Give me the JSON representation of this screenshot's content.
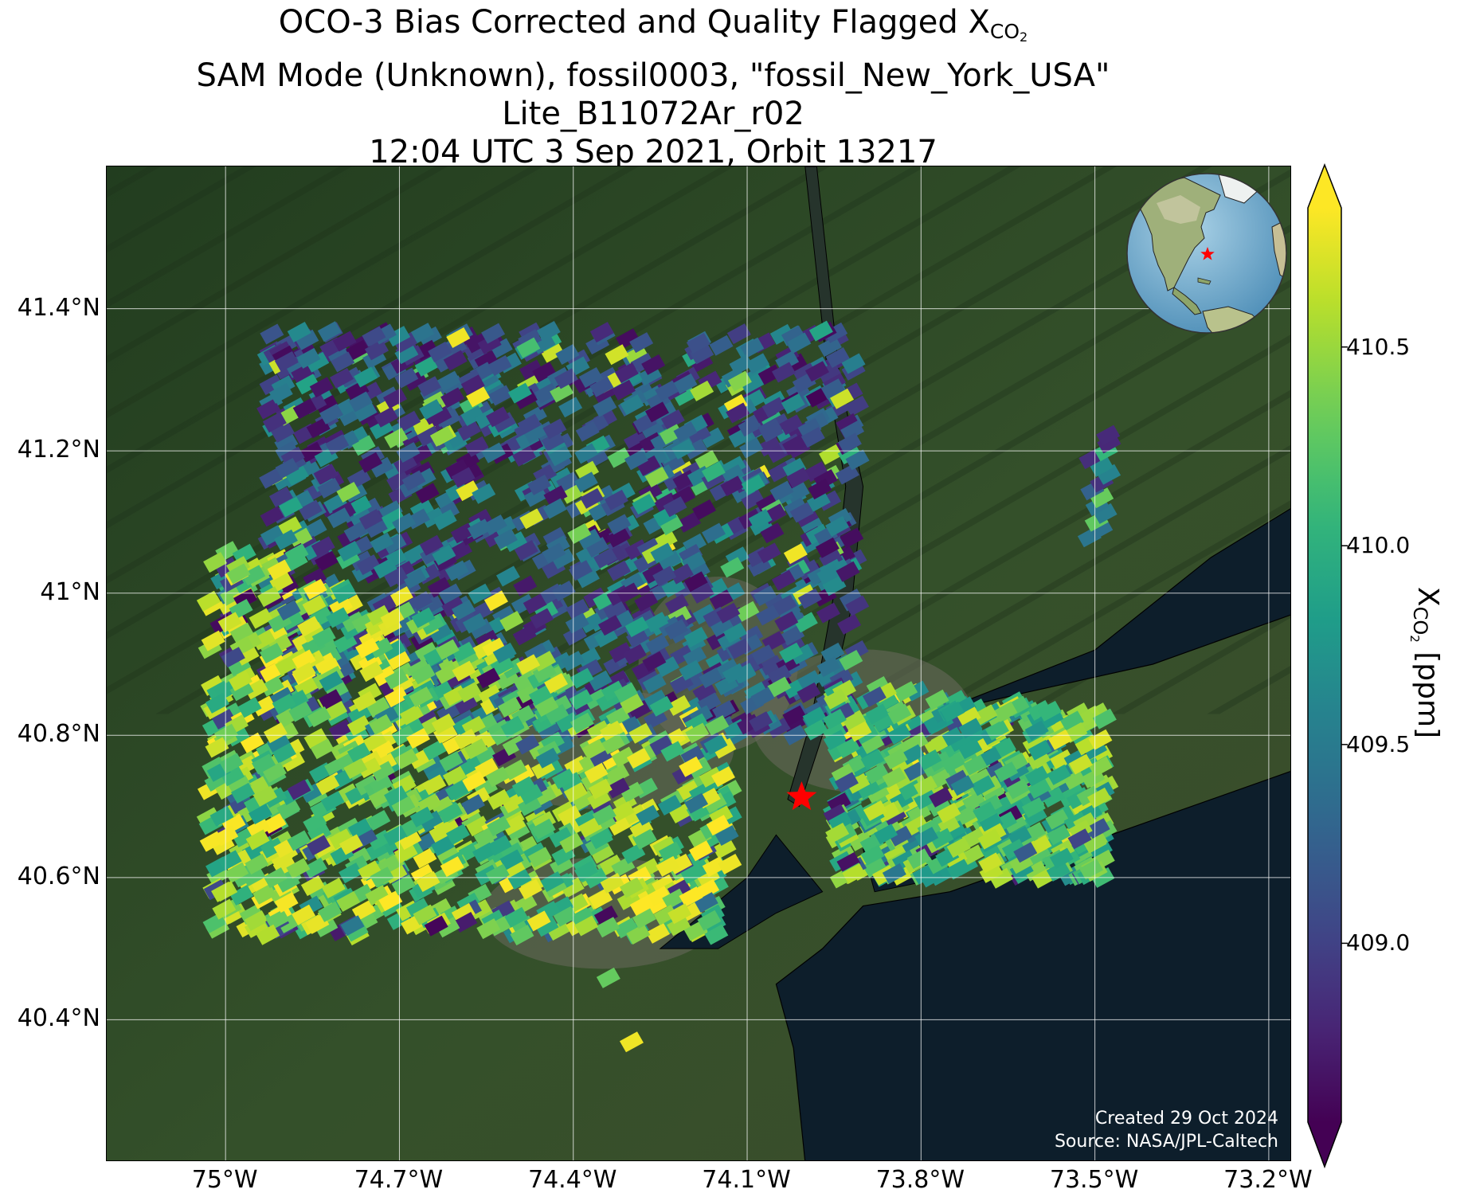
{
  "title": {
    "line1_prefix": "OCO-3 Bias Corrected and Quality Flagged X",
    "line1_sub": "CO",
    "line1_subsub": "2",
    "line2": "SAM Mode (Unknown), fossil0003, \"fossil_New_York_USA\"",
    "line3": "Lite_B11072Ar_r02",
    "line4": "12:04 UTC 3 Sep 2021, Orbit 13217"
  },
  "credits": {
    "created": "Created 29 Oct 2024",
    "source": "Source: NASA/JPL-Caltech"
  },
  "map": {
    "extent": {
      "lon_min": -75.205,
      "lon_max": -73.16,
      "lat_min": 40.2,
      "lat_max": 41.6
    },
    "lat_ticks": [
      {
        "value": 41.4,
        "label": "41.4°N"
      },
      {
        "value": 41.2,
        "label": "41.2°N"
      },
      {
        "value": 41.0,
        "label": "41°N"
      },
      {
        "value": 40.8,
        "label": "40.8°N"
      },
      {
        "value": 40.6,
        "label": "40.6°N"
      },
      {
        "value": 40.4,
        "label": "40.4°N"
      }
    ],
    "lon_ticks": [
      {
        "value": -75.0,
        "label": "75°W"
      },
      {
        "value": -74.7,
        "label": "74.7°W"
      },
      {
        "value": -74.4,
        "label": "74.4°W"
      },
      {
        "value": -74.1,
        "label": "74.1°W"
      },
      {
        "value": -73.8,
        "label": "73.8°W"
      },
      {
        "value": -73.5,
        "label": "73.5°W"
      },
      {
        "value": -73.2,
        "label": "73.2°W"
      }
    ],
    "target": {
      "name": "fossil_New_York_USA",
      "lat": 40.713,
      "lon": -74.006,
      "marker": "star-icon",
      "color": "#ff0000"
    },
    "colors": {
      "land": "#2c4425",
      "water": "#0d1e2b",
      "grid": "#ffffff",
      "urban": "#6a6a5c"
    }
  },
  "colorbar": {
    "label_prefix": "X",
    "label_sub": "CO",
    "label_subsub": "2",
    "label_suffix": " [ppm]",
    "min": 408.55,
    "max": 410.85,
    "colormap": "viridis",
    "extend": "both",
    "ticks": [
      {
        "value": 409.0,
        "label": "409.0"
      },
      {
        "value": 409.5,
        "label": "409.5"
      },
      {
        "value": 410.0,
        "label": "410.0"
      },
      {
        "value": 410.5,
        "label": "410.5"
      }
    ]
  },
  "soundings": {
    "description_regions": [
      {
        "name": "northwest swath",
        "lat_range": [
          40.85,
          41.37
        ],
        "lon_range": [
          -74.95,
          -73.93
        ],
        "dominant_xco2": "409.0-409.6"
      },
      {
        "name": "southwest swath",
        "lat_range": [
          40.52,
          41.08
        ],
        "lon_range": [
          -75.05,
          -74.2
        ],
        "dominant_xco2": "410.2-410.9"
      },
      {
        "name": "long island swath",
        "lat_range": [
          40.6,
          40.85
        ],
        "lon_range": [
          -73.95,
          -73.5
        ],
        "dominant_xco2": "409.8-410.6"
      },
      {
        "name": "eastern strip",
        "lat_range": [
          41.08,
          41.23
        ],
        "lon_range": [
          -73.53,
          -73.48
        ],
        "dominant_xco2": "409.0-410.5"
      }
    ]
  },
  "globe": {
    "marker_color": "#ff0000",
    "marker": "star-icon"
  }
}
